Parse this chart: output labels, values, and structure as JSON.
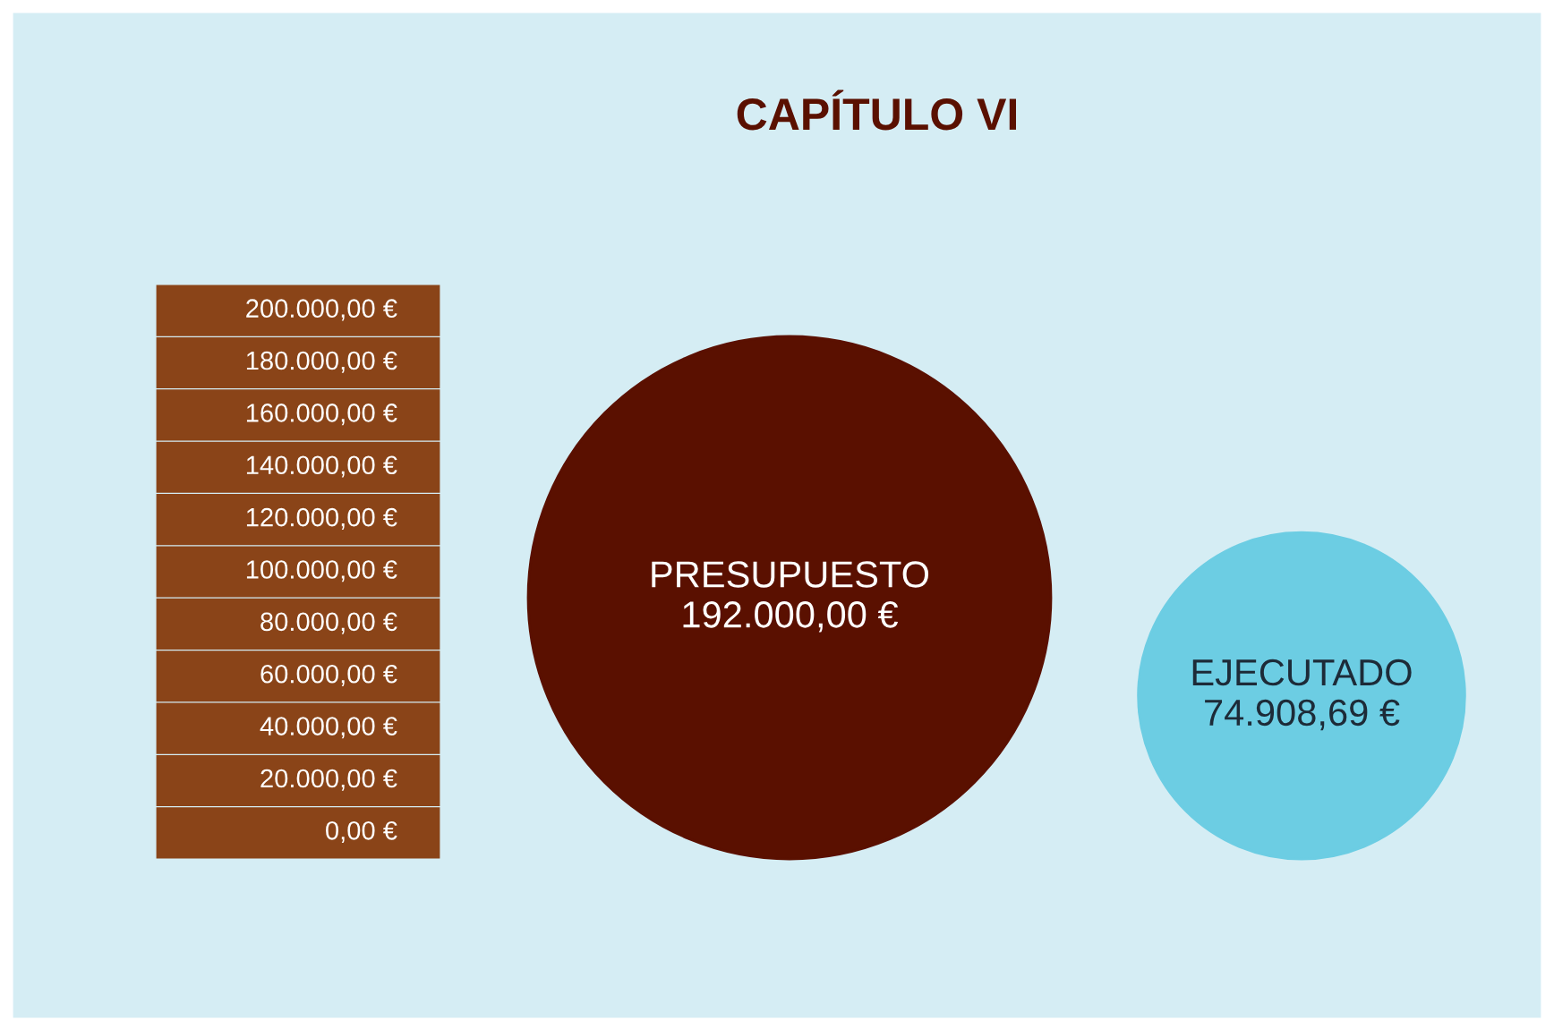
{
  "chart_data": {
    "type": "other",
    "title": "CAPÍTULO VI",
    "categories": [
      "PRESUPUESTO",
      "EJECUTADO"
    ],
    "values": [
      192000,
      74908.69
    ],
    "value_labels": [
      "192.000,00 €",
      "74.908,69 €"
    ],
    "colors": [
      "#5a1000",
      "#6ccde3"
    ],
    "annotations": [
      "200.000,00 €",
      "180.000,00 €",
      "160.000,00 €",
      "140.000,00 €",
      "120.000,00 €",
      "100.000,00 €",
      "80.000,00 €",
      "60.000,00 €",
      "40.000,00 €",
      "20.000,00 €",
      "0,00 €"
    ]
  }
}
